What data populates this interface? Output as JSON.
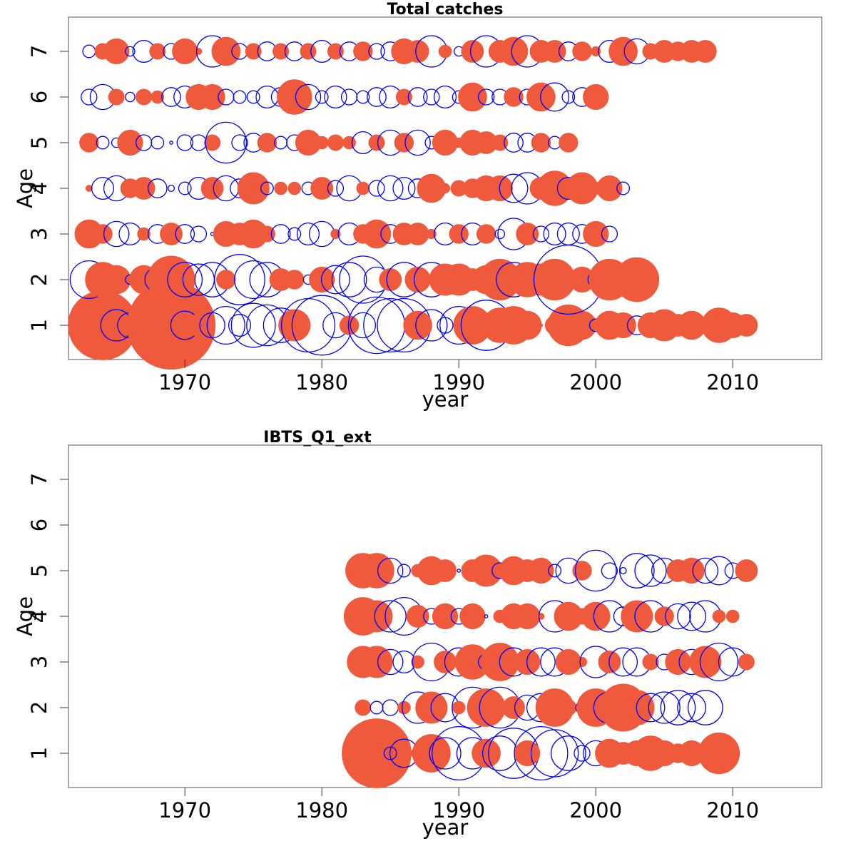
{
  "colors": {
    "positive": "#f05a3c",
    "negative": "#0000ff"
  },
  "chart_data": [
    {
      "type": "scatter",
      "title": "Total catches",
      "xlabel": "year",
      "ylabel": "Age",
      "xlim": [
        1961.5,
        2016.5
      ],
      "ylim": [
        0.25,
        7.75
      ],
      "xticks": [
        1970,
        1980,
        1990,
        2000,
        2010
      ],
      "yticks": [
        1,
        2,
        3,
        4,
        5,
        6,
        7
      ],
      "years": [
        1963,
        2013
      ],
      "ages": [
        1,
        7
      ],
      "legend": "none",
      "notes_encoding": "bubble size = |residual|; filled orange = positive, open blue = negative",
      "residuals": {
        "1": [
          1.2,
          2.2,
          -1.0,
          -0.8,
          0.9,
          -1.4,
          2.8,
          -0.9,
          0.7,
          -0.8,
          -1.2,
          -0.7,
          -1.4,
          -1.3,
          -1.1,
          1.0,
          -1.7,
          -1.9,
          -0.8,
          0.6,
          -0.8,
          -1.8,
          -1.7,
          -1.7,
          0.9,
          -1.0,
          -0.5,
          -1.2,
          1.2,
          -1.6,
          1.1,
          1.2,
          0.9,
          0.1,
          0.6,
          1.3,
          0.9,
          -0.4,
          0.9,
          0.8,
          -0.6,
          0.8,
          1.0,
          0.7,
          0.9,
          0.5,
          1.1,
          0.8,
          0.7
        ],
        "2": [
          -1.2,
          1.1,
          0.9,
          -0.3,
          0.9,
          -0.8,
          1.5,
          -1.1,
          -1.0,
          -1.1,
          0.6,
          -1.6,
          -1.2,
          -1.1,
          0.7,
          0.6,
          -0.3,
          0.8,
          -0.9,
          -1.1,
          -1.5,
          -0.8,
          0.7,
          -1.1,
          0.8,
          -1.1,
          1.0,
          1.0,
          0.7,
          0.9,
          1.3,
          -1.1,
          1.1,
          1.0,
          1.3,
          -2.2,
          0.8,
          -0.5,
          1.3,
          -0.3,
          1.4
        ],
        "3": [
          0.9,
          0.6,
          -0.8,
          -0.7,
          0.4,
          -0.6,
          0.7,
          -0.6,
          -0.5,
          -0.1,
          0.8,
          0.7,
          0.9,
          0.5,
          -0.6,
          -0.4,
          -0.7,
          -0.8,
          0.3,
          -0.7,
          0.6,
          0.9,
          -0.6,
          0.7,
          0.7,
          0.3,
          -0.7,
          0.6,
          -0.7,
          0.6,
          -0.3,
          -1.0,
          0.7,
          -0.5,
          -0.7,
          -0.7,
          -0.6,
          0.8,
          -0.5
        ],
        "4": [
          0.2,
          -0.7,
          -0.8,
          0.6,
          0.7,
          -0.6,
          -0.2,
          -0.4,
          -0.7,
          0.7,
          -0.8,
          -0.6,
          1.0,
          -0.4,
          0.4,
          0.4,
          -0.4,
          0.7,
          -0.5,
          -0.8,
          0.4,
          -0.5,
          -0.8,
          -0.7,
          -0.6,
          0.9,
          0.3,
          0.5,
          0.6,
          0.8,
          0.8,
          -0.9,
          -1.0,
          0.7,
          1.1,
          -0.7,
          1.0,
          0.4,
          0.8,
          -0.4
        ],
        "5": [
          0.6,
          -0.4,
          -0.3,
          0.8,
          -0.5,
          -0.4,
          -0.1,
          -0.5,
          -0.5,
          0.5,
          -1.3,
          -0.5,
          -0.6,
          0.6,
          -0.4,
          -0.5,
          0.8,
          0.4,
          0.5,
          0.4,
          -0.7,
          0.5,
          -0.8,
          0.6,
          -0.8,
          -0.4,
          0.8,
          0.3,
          0.8,
          0.7,
          0.5,
          -0.6,
          -0.6,
          0.6,
          -0.4,
          0.6
        ],
        "6": [
          -0.5,
          -0.8,
          0.5,
          -0.3,
          0.5,
          0.4,
          -0.6,
          -0.7,
          0.8,
          0.8,
          -0.5,
          -0.4,
          -0.4,
          -0.7,
          -0.6,
          1.1,
          -0.8,
          -0.4,
          -0.7,
          -0.5,
          -0.4,
          -0.6,
          -0.7,
          0.5,
          -0.6,
          -0.5,
          -0.7,
          -0.4,
          0.9,
          -0.5,
          -0.5,
          0.6,
          -0.5,
          0.9,
          -0.9,
          -0.4,
          -0.6,
          0.8
        ],
        "7": [
          -0.4,
          0.5,
          0.8,
          -0.3,
          -0.7,
          0.5,
          -0.5,
          0.8,
          0.2,
          -1.0,
          0.9,
          -0.5,
          0.5,
          -0.6,
          0.5,
          -0.6,
          0.5,
          -0.7,
          0.5,
          -0.6,
          0.6,
          -0.5,
          -0.6,
          0.8,
          0.7,
          -1.0,
          0.4,
          -0.3,
          0.7,
          -1.0,
          0.7,
          0.9,
          -1.0,
          0.7,
          0.7,
          -0.6,
          0.6,
          0.3,
          -0.7,
          0.9,
          -0.8,
          0.5,
          0.7,
          0.6,
          0.7,
          0.7
        ]
      }
    },
    {
      "type": "scatter",
      "title": "IBTS_Q1_ext",
      "xlabel": "year",
      "ylabel": "Age",
      "xlim": [
        1961.5,
        2016.5
      ],
      "ylim": [
        0.25,
        7.75
      ],
      "xticks": [
        1970,
        1980,
        1990,
        2000,
        2010
      ],
      "yticks": [
        1,
        2,
        3,
        4,
        5,
        6,
        7
      ],
      "years": [
        1983,
        2014
      ],
      "ages": [
        1,
        5
      ],
      "legend": "none",
      "residuals": {
        "1": [
          1.3,
          2.2,
          -0.4,
          -0.9,
          0.4,
          1.2,
          -1.0,
          -1.7,
          -1.0,
          0.9,
          -1.1,
          -1.6,
          0.8,
          -1.7,
          -1.5,
          -1.1,
          -0.5,
          -0.8,
          0.9,
          0.7,
          0.8,
          1.1,
          0.8,
          0.6,
          0.8,
          0.5,
          1.3
        ],
        "2": [
          0.5,
          -0.4,
          -0.5,
          0.4,
          -1.0,
          1.0,
          -0.9,
          0.4,
          -1.3,
          1.2,
          -1.3,
          0.7,
          -0.8,
          -0.9,
          1.2,
          0.5,
          -0.4,
          1.2,
          -1.0,
          1.5,
          1.1,
          -0.9,
          -1.0,
          -1.1,
          -0.9,
          -1.1
        ],
        "3": [
          1.0,
          1.0,
          -0.8,
          -0.7,
          0.4,
          -1.2,
          0.7,
          -0.9,
          1.1,
          -0.5,
          1.2,
          -0.9,
          0.8,
          -0.9,
          -0.9,
          0.8,
          0.3,
          -1.0,
          0.7,
          -0.9,
          -0.9,
          0.5,
          -0.5,
          0.8,
          -0.8,
          1.0,
          -1.2,
          -0.9,
          0.5
        ],
        "4": [
          1.2,
          1.0,
          -1.0,
          -1.2,
          0.7,
          -0.5,
          0.8,
          -0.5,
          0.8,
          -0.1,
          0.4,
          0.8,
          0.8,
          0.2,
          -1.0,
          0.9,
          0.5,
          0.9,
          -1.0,
          -0.6,
          1.0,
          -1.0,
          0.6,
          -0.8,
          -0.9,
          -1.0,
          0.4,
          0.4
        ],
        "5": [
          1.1,
          1.1,
          -0.8,
          -0.4,
          0.4,
          0.9,
          0.7,
          -0.1,
          0.7,
          1.0,
          -0.5,
          0.9,
          0.7,
          0.8,
          -0.4,
          -0.8,
          0.6,
          -1.3,
          -0.5,
          -0.2,
          -1.1,
          -1.0,
          -0.8,
          0.7,
          0.8,
          -0.8,
          -0.9,
          -0.5,
          0.7
        ]
      }
    }
  ]
}
